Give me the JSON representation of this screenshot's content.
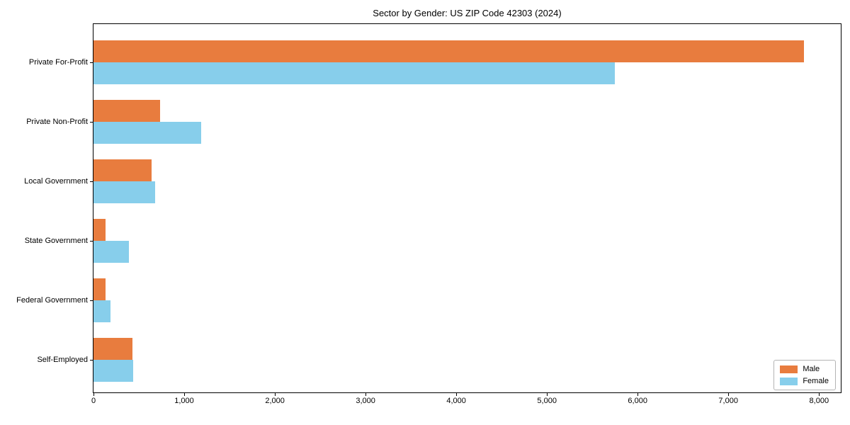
{
  "chart_data": {
    "type": "bar",
    "orientation": "horizontal",
    "title": "Sector by Gender: US ZIP Code 42303 (2024)",
    "categories": [
      "Private For-Profit",
      "Private Non-Profit",
      "Local Government",
      "State Government",
      "Federal Government",
      "Self-Employed"
    ],
    "series": [
      {
        "name": "Male",
        "color": "#e87c3e",
        "values": [
          7830,
          730,
          640,
          135,
          135,
          430
        ]
      },
      {
        "name": "Female",
        "color": "#87ceeb",
        "values": [
          5750,
          1190,
          680,
          390,
          190,
          440
        ]
      }
    ],
    "xlabel": "",
    "ylabel": "",
    "xlim": [
      0,
      8240
    ],
    "xticks": [
      0,
      1000,
      2000,
      3000,
      4000,
      5000,
      6000,
      7000,
      8000
    ],
    "xtick_labels": [
      "0",
      "1,000",
      "2,000",
      "3,000",
      "4,000",
      "5,000",
      "6,000",
      "7,000",
      "8,000"
    ],
    "grid": false,
    "legend": {
      "position": "lower right",
      "items": [
        "Male",
        "Female"
      ]
    },
    "axis_color": "#000000",
    "background_color": "#ffffff"
  }
}
